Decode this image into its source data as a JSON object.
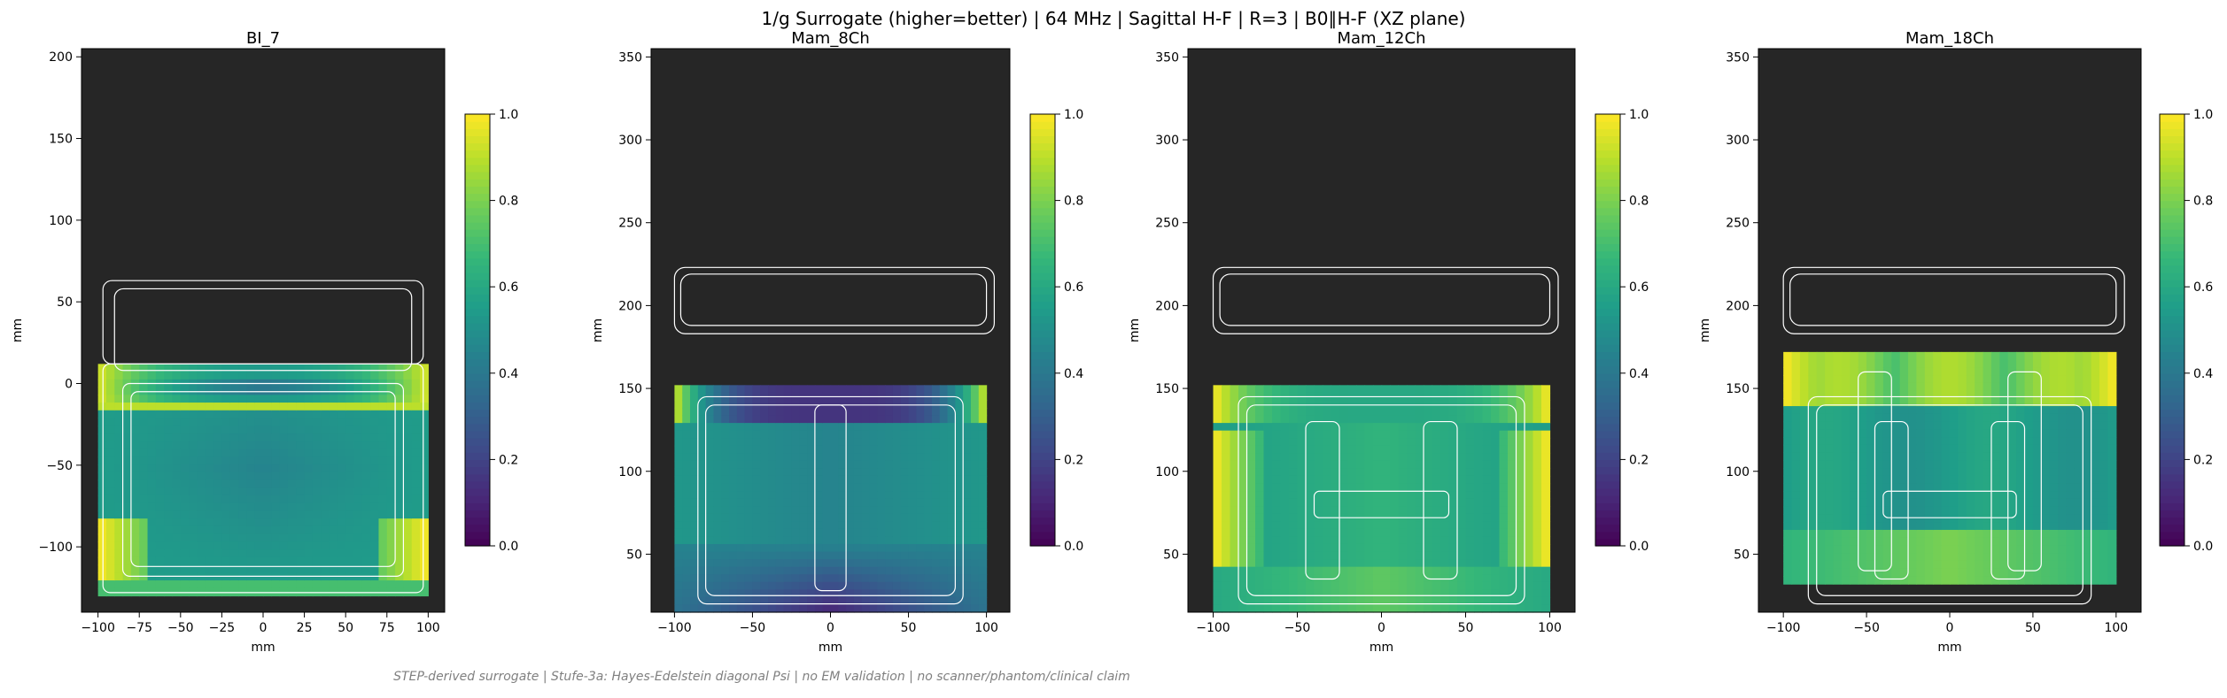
{
  "suptitle": "1/g Surrogate (higher=better) | 64 MHz | Sagittal H-F | R=3 | B0∥H-F (XZ plane)",
  "footer": "STEP-derived surrogate | Stufe-3a: Hayes-Edelstein diagonal Psi | no EM validation | no scanner/phantom/clinical claim",
  "colors": {
    "background": "#262626",
    "outline": "#ffffff",
    "colormap": "viridis"
  },
  "chart_data": [
    {
      "type": "heatmap",
      "title": "BI_7",
      "xlabel": "mm",
      "ylabel": "mm",
      "xlim": [
        -110,
        110
      ],
      "ylim": [
        -140,
        205
      ],
      "xticks": [
        -100,
        -75,
        -50,
        -25,
        0,
        25,
        50,
        75,
        100
      ],
      "yticks": [
        -100,
        -50,
        0,
        50,
        100,
        150,
        200
      ],
      "field_extent": {
        "x": [
          -100,
          100
        ],
        "y": [
          -130,
          12
        ]
      },
      "colorbar": {
        "min": 0.0,
        "max": 1.0,
        "ticks": [
          "0.0",
          "0.2",
          "0.4",
          "0.6",
          "0.8",
          "1.0"
        ]
      }
    },
    {
      "type": "heatmap",
      "title": "Mam_8Ch",
      "xlabel": "mm",
      "ylabel": "mm",
      "xlim": [
        -115,
        115
      ],
      "ylim": [
        15,
        355
      ],
      "xticks": [
        -100,
        -50,
        0,
        50,
        100
      ],
      "yticks": [
        50,
        100,
        150,
        200,
        250,
        300,
        350
      ],
      "field_extent": {
        "x": [
          -100,
          100
        ],
        "y": [
          15,
          152
        ]
      },
      "colorbar": {
        "min": 0.0,
        "max": 1.0,
        "ticks": [
          "0.0",
          "0.2",
          "0.4",
          "0.6",
          "0.8",
          "1.0"
        ]
      }
    },
    {
      "type": "heatmap",
      "title": "Mam_12Ch",
      "xlabel": "mm",
      "ylabel": "mm",
      "xlim": [
        -115,
        115
      ],
      "ylim": [
        15,
        355
      ],
      "xticks": [
        -100,
        -50,
        0,
        50,
        100
      ],
      "yticks": [
        50,
        100,
        150,
        200,
        250,
        300,
        350
      ],
      "field_extent": {
        "x": [
          -100,
          100
        ],
        "y": [
          15,
          152
        ]
      },
      "colorbar": {
        "min": 0.0,
        "max": 1.0,
        "ticks": [
          "0.0",
          "0.2",
          "0.4",
          "0.6",
          "0.8",
          "1.0"
        ]
      }
    },
    {
      "type": "heatmap",
      "title": "Mam_18Ch",
      "xlabel": "mm",
      "ylabel": "mm",
      "xlim": [
        -115,
        115
      ],
      "ylim": [
        15,
        355
      ],
      "xticks": [
        -100,
        -50,
        0,
        50,
        100
      ],
      "yticks": [
        50,
        100,
        150,
        200,
        250,
        300,
        350
      ],
      "field_extent": {
        "x": [
          -100,
          100
        ],
        "y": [
          32,
          172
        ]
      },
      "colorbar": {
        "min": 0.0,
        "max": 1.0,
        "ticks": [
          "0.0",
          "0.2",
          "0.4",
          "0.6",
          "0.8",
          "1.0"
        ]
      }
    }
  ]
}
